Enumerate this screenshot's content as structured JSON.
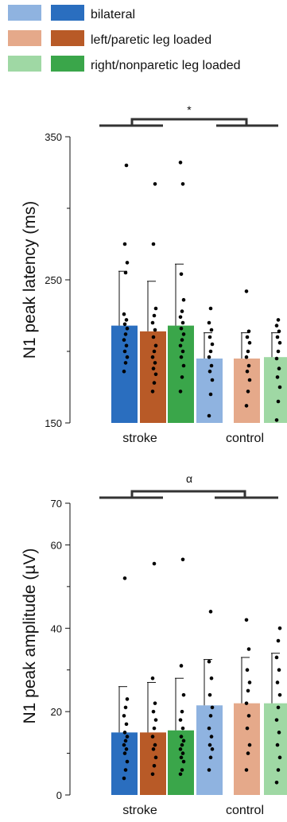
{
  "legend": {
    "entries": [
      {
        "label": "bilateral",
        "light_color": "#8fb3e0",
        "dark_color": "#2a6ebf"
      },
      {
        "label": "left/paretic leg loaded",
        "light_color": "#e5a98a",
        "dark_color": "#b85a27"
      },
      {
        "label": "right/nonparetic leg loaded",
        "light_color": "#9fd8a4",
        "dark_color": "#3aa64a"
      }
    ]
  },
  "chart_data": [
    {
      "type": "bar",
      "ylabel": "N1 peak latency (ms)",
      "ylim": [
        150,
        350
      ],
      "yticks": [
        150,
        250,
        350
      ],
      "categories": [
        "stroke",
        "control"
      ],
      "significance": "*",
      "series": [
        {
          "name": "bilateral",
          "values": [
            218,
            195
          ],
          "errors": [
            38,
            18
          ],
          "points": [
            [
              186,
              192,
              196,
              200,
              204,
              208,
              212,
              216,
              219,
              222,
              226,
              255,
              262,
              275,
              330
            ],
            [
              155,
              170,
              180,
              186,
              190,
              196,
              200,
              205,
              210,
              215,
              220,
              230
            ]
          ]
        },
        {
          "name": "left/paretic leg loaded",
          "values": [
            214,
            195
          ],
          "errors": [
            35,
            18
          ],
          "points": [
            [
              172,
              178,
              184,
              188,
              192,
              196,
              200,
              204,
              210,
              215,
              220,
              225,
              230,
              275,
              317
            ],
            [
              162,
              172,
              180,
              186,
              190,
              196,
              200,
              206,
              210,
              214,
              242
            ]
          ]
        },
        {
          "name": "right/nonparetic leg loaded",
          "values": [
            218,
            196
          ],
          "errors": [
            43,
            17
          ],
          "points": [
            [
              172,
              182,
              190,
              196,
              200,
              204,
              208,
              212,
              216,
              220,
              224,
              228,
              236,
              254,
              317,
              332
            ],
            [
              152,
              165,
              175,
              182,
              188,
              195,
              200,
              206,
              210,
              214,
              218,
              222
            ]
          ]
        }
      ]
    },
    {
      "type": "bar",
      "ylabel": "N1 peak amplitude (µV)",
      "ylim": [
        0,
        70
      ],
      "yticks": [
        0,
        20,
        40,
        60,
        70
      ],
      "categories": [
        "stroke",
        "control"
      ],
      "significance": "α",
      "series": [
        {
          "name": "bilateral",
          "values": [
            15,
            21.5
          ],
          "errors": [
            11,
            11
          ],
          "points": [
            [
              4,
              6,
              8,
              10,
              11,
              12,
              13,
              14,
              15,
              17,
              19,
              21,
              23,
              52
            ],
            [
              6,
              9,
              11,
              12,
              14,
              16,
              19,
              21,
              24,
              28,
              32,
              44
            ]
          ]
        },
        {
          "name": "left/paretic leg loaded",
          "values": [
            15,
            22
          ],
          "errors": [
            12,
            11
          ],
          "points": [
            [
              5,
              7,
              9,
              11,
              12,
              14,
              16,
              18,
              20,
              22,
              28,
              55.5
            ],
            [
              6,
              10,
              12,
              16,
              19,
              22,
              25,
              27,
              30,
              35,
              42
            ]
          ]
        },
        {
          "name": "right/nonparetic leg loaded",
          "values": [
            15.5,
            22
          ],
          "errors": [
            12.5,
            12
          ],
          "points": [
            [
              5,
              6,
              8,
              9,
              10,
              11,
              12,
              13,
              14,
              16,
              18,
              20,
              24,
              31,
              56.5
            ],
            [
              3,
              6,
              9,
              12,
              15,
              18,
              21,
              24,
              27,
              30,
              33,
              37,
              40
            ]
          ]
        }
      ]
    }
  ]
}
